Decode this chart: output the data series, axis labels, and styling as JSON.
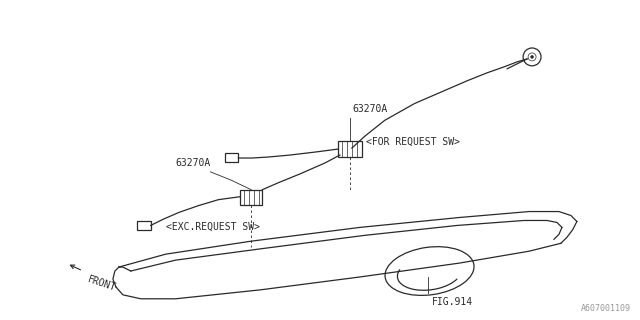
{
  "bg_color": "#ffffff",
  "line_color": "#2a2a2a",
  "text_color": "#2a2a2a",
  "watermark": "A607001109",
  "labels": {
    "part1_upper": "63270A",
    "part1_lower": "63270A",
    "label_for": "<FOR REQUEST SW>",
    "label_exc": "<EXC.REQUEST SW>",
    "fig": "FIG.914",
    "front": "FRONT"
  },
  "figsize": [
    6.4,
    3.2
  ],
  "dpi": 100
}
